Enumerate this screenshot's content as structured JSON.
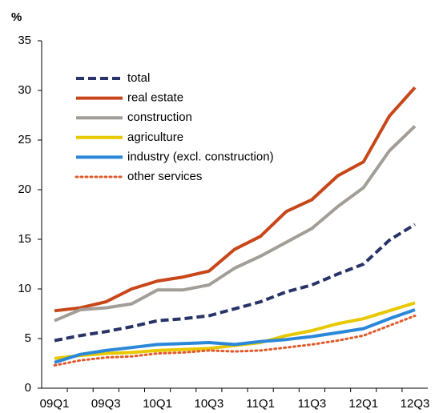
{
  "chart_data": {
    "type": "line",
    "y_label": "%",
    "categories": [
      "09Q1",
      null,
      "09Q3",
      null,
      "10Q1",
      null,
      "10Q3",
      null,
      "11Q1",
      null,
      "11Q3",
      null,
      "12Q1",
      null,
      "12Q3"
    ],
    "ylim": [
      0,
      35
    ],
    "yticks": [
      0,
      5,
      10,
      15,
      20,
      25,
      30,
      35
    ],
    "legend": "top-left",
    "series": [
      {
        "name": "total",
        "color": "#283468",
        "dash": "dashed",
        "values": [
          4.8,
          5.3,
          5.7,
          6.2,
          6.8,
          7.0,
          7.3,
          8.0,
          8.7,
          9.7,
          10.4,
          11.5,
          12.5,
          14.9,
          16.5
        ]
      },
      {
        "name": "real estate",
        "color": "#c8471a",
        "dash": "solid",
        "values": [
          7.8,
          8.1,
          8.7,
          10.0,
          10.8,
          11.2,
          11.8,
          14.0,
          15.3,
          17.8,
          19.0,
          21.4,
          22.8,
          27.4,
          30.3
        ]
      },
      {
        "name": "construction",
        "color": "#a39d97",
        "dash": "solid",
        "values": [
          6.8,
          7.9,
          8.1,
          8.5,
          9.9,
          9.9,
          10.4,
          12.1,
          13.3,
          14.7,
          16.1,
          18.3,
          20.2,
          23.9,
          26.4
        ]
      },
      {
        "name": "agriculture",
        "color": "#e8c800",
        "dash": "solid",
        "values": [
          3.0,
          3.3,
          3.5,
          3.6,
          3.8,
          3.9,
          4.0,
          4.3,
          4.6,
          5.3,
          5.8,
          6.5,
          7.0,
          7.8,
          8.6
        ]
      },
      {
        "name": "industry (excl. construction)",
        "color": "#2b88d8",
        "dash": "solid",
        "values": [
          2.6,
          3.4,
          3.8,
          4.1,
          4.4,
          4.5,
          4.6,
          4.4,
          4.7,
          4.9,
          5.2,
          5.6,
          6.0,
          7.0,
          7.9
        ]
      },
      {
        "name": "other services",
        "color": "#e05a2a",
        "dash": "dotted",
        "values": [
          2.3,
          2.8,
          3.1,
          3.2,
          3.5,
          3.6,
          3.8,
          3.7,
          3.8,
          4.1,
          4.4,
          4.8,
          5.3,
          6.3,
          7.3
        ]
      }
    ]
  }
}
